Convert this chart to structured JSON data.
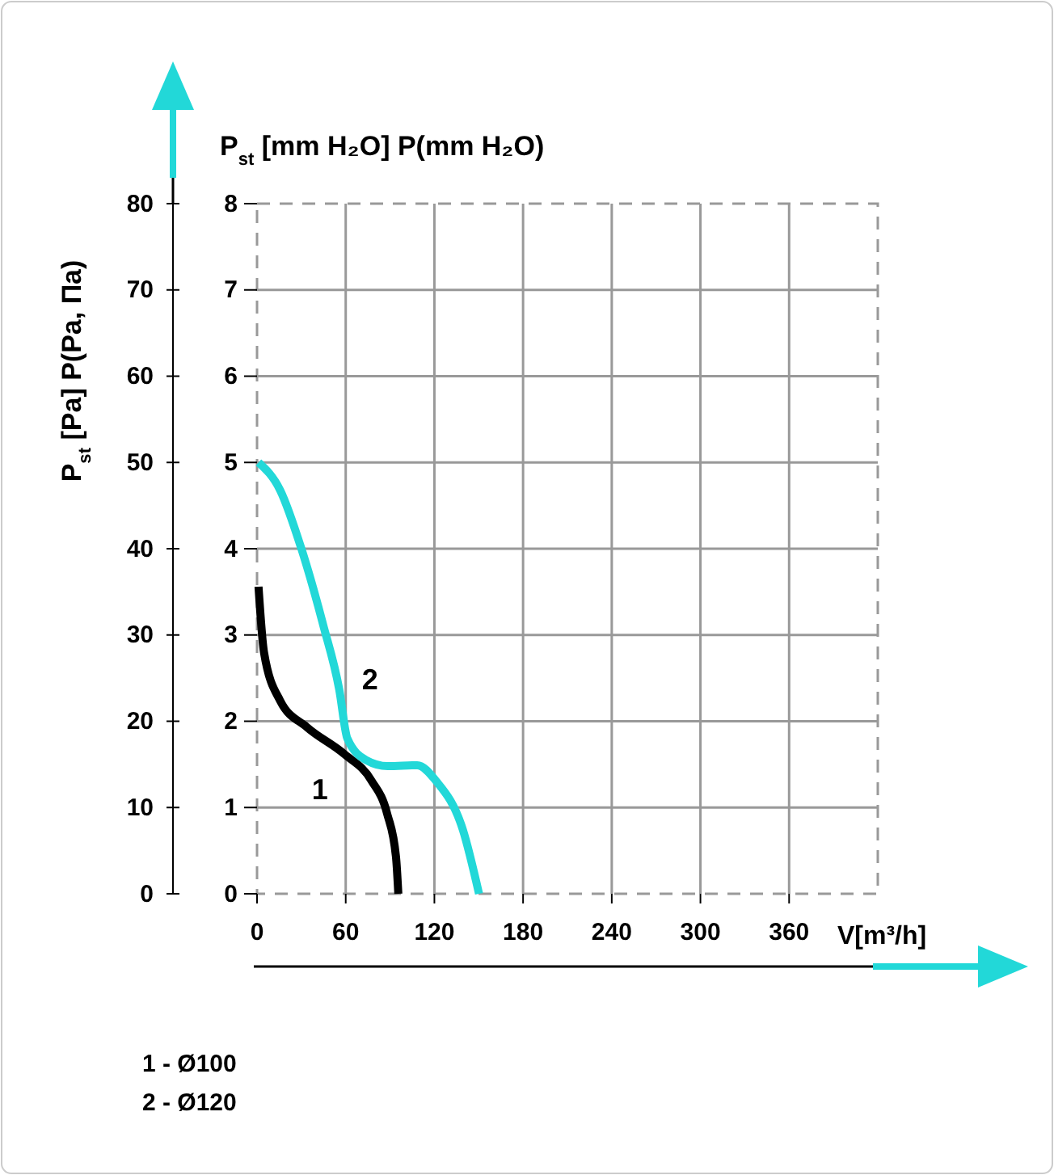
{
  "chart_data": {
    "type": "line",
    "xlabel": "V[m³/h]",
    "ylabel": "P$_{st}$ [mm H₂O] P(mm H₂O)",
    "y2label": "P$_{st}$ [Pa] P(Pa, Па)",
    "xlim": [
      0,
      420
    ],
    "xticks": [
      0,
      60,
      120,
      180,
      240,
      300,
      360
    ],
    "ylim": [
      0,
      8
    ],
    "yticks": [
      0,
      1,
      2,
      3,
      4,
      5,
      6,
      7,
      8
    ],
    "y2lim": [
      0,
      80
    ],
    "y2ticks": [
      0,
      10,
      20,
      30,
      40,
      50,
      60,
      70,
      80
    ],
    "grid": true,
    "line_style": "solid",
    "marker": "none",
    "series": [
      {
        "name": "1",
        "color": "#000000",
        "x": [
          1,
          4.7,
          15.6,
          33.8,
          59,
          77.5,
          88,
          94,
          95.6
        ],
        "values": [
          3.56,
          2.8,
          2.24,
          1.93,
          1.62,
          1.31,
          0.93,
          0.43,
          0
        ]
      },
      {
        "name": "2",
        "color": "#22d8d8",
        "x": [
          1,
          15.6,
          30.2,
          44.7,
          55.6,
          61.1,
          73.8,
          88.4,
          108.4,
          121,
          139.3,
          150.2
        ],
        "values": [
          5.0,
          4.68,
          3.99,
          3.12,
          2.37,
          1.8,
          1.55,
          1.48,
          1.49,
          1.31,
          0.74,
          0
        ]
      }
    ],
    "annotations": [
      "1 - Ø100",
      "2 - Ø120"
    ]
  }
}
